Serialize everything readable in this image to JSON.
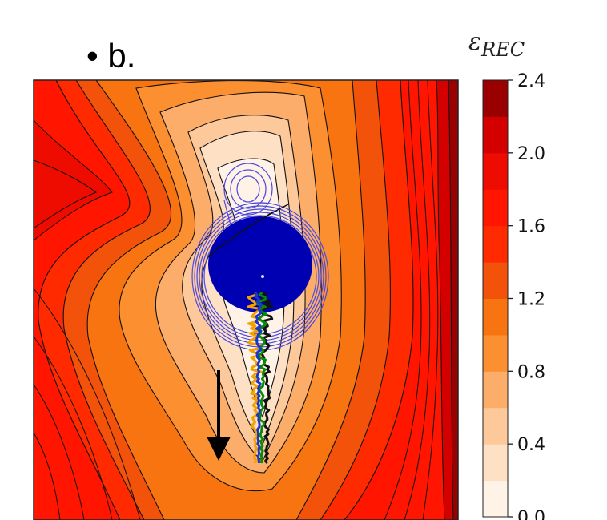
{
  "panel_label": "• b.",
  "chart_data": {
    "type": "heatmap",
    "title": "",
    "xlabel": "",
    "ylabel": "",
    "colorbar": {
      "label_main": "ε",
      "label_sub": "REC",
      "min": 0.0,
      "max": 2.4,
      "tick_labels": [
        "2.4",
        "2.0",
        "1.6",
        "1.2",
        "0.8",
        "0.4",
        "0.0"
      ],
      "levels": [
        0.0,
        0.2,
        0.4,
        0.6,
        0.8,
        1.0,
        1.2,
        1.4,
        1.6,
        1.8,
        2.0,
        2.2,
        2.4
      ],
      "colors": [
        "#fff2e6",
        "#fee0c5",
        "#fdc99a",
        "#fdad6a",
        "#fc9030",
        "#f77410",
        "#f2520a",
        "#ff2a00",
        "#ff1500",
        "#ee0c00",
        "#d40000",
        "#9a0000"
      ]
    },
    "overlays": {
      "blue_density_color": "#0000b3",
      "blue_contour_color": "#4a4ae0",
      "trajectory_colors": [
        "#f5a000",
        "#0a8a0a",
        "#111111",
        "#1a35d0"
      ],
      "arrow_color": "#000000",
      "arrow_direction": "down"
    }
  }
}
